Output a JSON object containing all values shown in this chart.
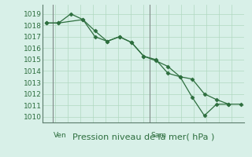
{
  "background_color": "#d8f0e8",
  "grid_color": "#b0d8c0",
  "line_color": "#2d6e3e",
  "marker_color": "#2d6e3e",
  "ylabel_ticks": [
    1010,
    1011,
    1012,
    1013,
    1014,
    1015,
    1016,
    1017,
    1018,
    1019
  ],
  "ylim": [
    1009.5,
    1019.8
  ],
  "xlabel": "Pression niveau de la mer( hPa )",
  "xlabel_fontsize": 8,
  "tick_fontsize": 6.5,
  "ven_label": "Ven",
  "sam_label": "Sam",
  "ven_x": 0.5,
  "sam_x": 8.5,
  "line1_x": [
    0,
    1,
    3,
    4,
    5,
    6,
    7,
    8,
    9,
    10,
    11,
    12,
    13,
    14,
    15,
    16
  ],
  "line1_y": [
    1018.2,
    1018.2,
    1018.5,
    1017.5,
    1016.6,
    1017.0,
    1016.5,
    1015.3,
    1014.9,
    1014.4,
    1013.5,
    1011.7,
    1010.1,
    1011.1,
    1011.1,
    1011.1
  ],
  "line2_x": [
    0,
    1,
    2,
    3,
    4,
    5,
    6,
    7,
    8,
    9,
    10,
    11,
    12,
    13,
    14,
    15
  ],
  "line2_y": [
    1018.2,
    1018.2,
    1019.0,
    1018.5,
    1017.0,
    1016.6,
    1017.0,
    1016.5,
    1015.3,
    1015.0,
    1013.8,
    1013.5,
    1013.3,
    1012.0,
    1011.5,
    1011.1
  ],
  "total_points": 17,
  "xlim": [
    -0.3,
    16.3
  ],
  "vline1_x": 0.5,
  "vline2_x": 8.5
}
